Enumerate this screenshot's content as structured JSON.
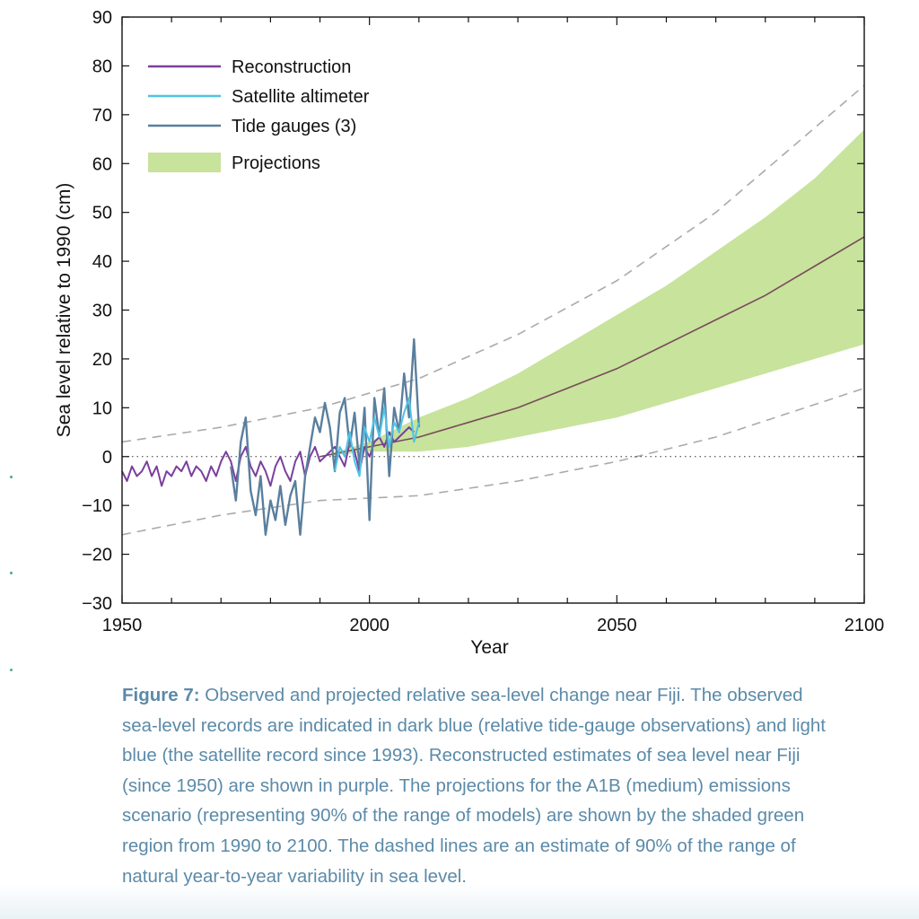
{
  "chart_data": {
    "type": "line",
    "title": "",
    "xlabel": "Year",
    "ylabel": "Sea level relative to 1990 (cm)",
    "xlim": [
      1950,
      2100
    ],
    "ylim": [
      -30,
      90
    ],
    "x_ticks": [
      1950,
      2000,
      2050,
      2100
    ],
    "y_ticks": [
      -30,
      -20,
      -10,
      0,
      10,
      20,
      30,
      40,
      50,
      60,
      70,
      80,
      90
    ],
    "y_tick_labels": [
      "−30",
      "−20",
      "−10",
      "0",
      "10",
      "20",
      "30",
      "40",
      "50",
      "60",
      "70",
      "80",
      "90"
    ],
    "legend_position": "top-left",
    "zero_line": "dotted",
    "series": [
      {
        "name": "Reconstruction",
        "color": "#7b3f9e",
        "x": [
          1950,
          1951,
          1952,
          1953,
          1954,
          1955,
          1956,
          1957,
          1958,
          1959,
          1960,
          1961,
          1962,
          1963,
          1964,
          1965,
          1966,
          1967,
          1968,
          1969,
          1970,
          1971,
          1972,
          1973,
          1974,
          1975,
          1976,
          1977,
          1978,
          1979,
          1980,
          1981,
          1982,
          1983,
          1984,
          1985,
          1986,
          1987,
          1988,
          1989,
          1990,
          1991,
          1992,
          1993,
          1994,
          1995,
          1996,
          1997,
          1998,
          1999,
          2000,
          2001,
          2002,
          2003,
          2004,
          2005,
          2006,
          2007,
          2008,
          2009
        ],
        "values": [
          -3,
          -5,
          -2,
          -4,
          -3,
          -1,
          -4,
          -2,
          -6,
          -3,
          -4,
          -2,
          -3,
          -1,
          -4,
          -2,
          -3,
          -5,
          -2,
          -4,
          -1,
          1,
          -1,
          -5,
          0,
          2,
          -2,
          -4,
          -1,
          -3,
          -6,
          -2,
          0,
          -3,
          -5,
          -1,
          1,
          -4,
          0,
          2,
          -1,
          0,
          1,
          2,
          0,
          -2,
          3,
          1,
          -3,
          2,
          0,
          3,
          4,
          2,
          5,
          3,
          4,
          5,
          6,
          5
        ]
      },
      {
        "name": "Satellite altimeter",
        "color": "#4fc3e6",
        "x": [
          1993,
          1994,
          1995,
          1996,
          1997,
          1998,
          1999,
          2000,
          2001,
          2002,
          2003,
          2004,
          2005,
          2006,
          2007,
          2008,
          2009,
          2010
        ],
        "values": [
          -3,
          2,
          0,
          5,
          -1,
          -4,
          6,
          3,
          8,
          4,
          10,
          2,
          7,
          5,
          9,
          12,
          3,
          7
        ]
      },
      {
        "name": "Tide gauges (3)",
        "color": "#5a7f9e",
        "x": [
          1972,
          1973,
          1974,
          1975,
          1976,
          1977,
          1978,
          1979,
          1980,
          1981,
          1982,
          1983,
          1984,
          1985,
          1986,
          1987,
          1988,
          1989,
          1990,
          1991,
          1992,
          1993,
          1994,
          1995,
          1996,
          1997,
          1998,
          1999,
          2000,
          2001,
          2002,
          2003,
          2004,
          2005,
          2006,
          2007,
          2008,
          2009,
          2010
        ],
        "values": [
          -2,
          -9,
          3,
          8,
          -7,
          -12,
          -4,
          -16,
          -9,
          -13,
          -6,
          -14,
          -8,
          -5,
          -16,
          -4,
          2,
          8,
          5,
          11,
          6,
          -3,
          9,
          12,
          2,
          9,
          -2,
          10,
          -13,
          12,
          4,
          14,
          -4,
          10,
          5,
          17,
          8,
          24,
          6
        ]
      }
    ],
    "projection": {
      "name": "Projections",
      "color": "#c7e39c",
      "median_color": "#7a4a5a",
      "x": [
        1990,
        2000,
        2010,
        2020,
        2030,
        2040,
        2050,
        2060,
        2070,
        2080,
        2090,
        2100
      ],
      "median": [
        0,
        2,
        4,
        7,
        10,
        14,
        18,
        23,
        28,
        33,
        39,
        45
      ],
      "lower": [
        0,
        1,
        1,
        2,
        4,
        6,
        8,
        11,
        14,
        17,
        20,
        23
      ],
      "upper": [
        0,
        3,
        8,
        12,
        17,
        23,
        29,
        35,
        42,
        49,
        57,
        67
      ]
    },
    "variability_bounds": {
      "color": "#aaaaaa",
      "x": [
        1950,
        1970,
        1990,
        2010,
        2030,
        2050,
        2070,
        2100
      ],
      "upper": [
        3,
        6,
        10,
        16,
        25,
        36,
        50,
        76
      ],
      "lower": [
        -16,
        -12,
        -9,
        -8,
        -5,
        -1,
        4,
        14
      ]
    }
  },
  "caption": {
    "label": "Figure 7:",
    "text": " Observed and projected relative sea-level change near Fiji. The observed sea-level records are indicated in dark blue (relative tide-gauge observations) and light blue (the satellite record since 1993). Reconstructed estimates of sea level near Fiji (since 1950) are shown in purple. The projections for the A1B (medium) emissions scenario (representing 90% of the range of models) are shown by the shaded green region from 1990 to 2100. The dashed lines are an estimate of 90% of the range of natural year-to-year variability in sea level."
  }
}
